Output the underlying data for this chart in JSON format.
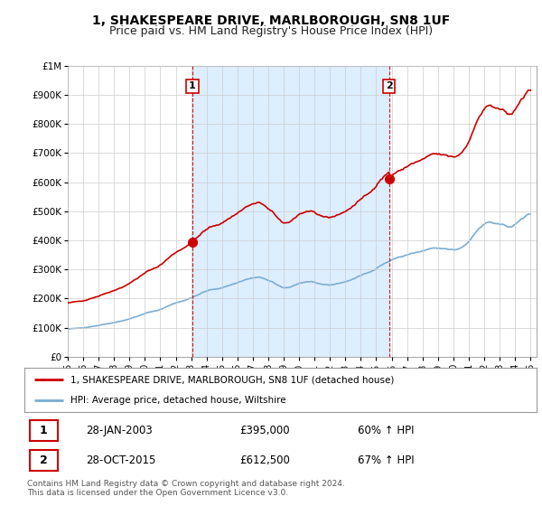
{
  "title": "1, SHAKESPEARE DRIVE, MARLBOROUGH, SN8 1UF",
  "subtitle": "Price paid vs. HM Land Registry's House Price Index (HPI)",
  "ylim": [
    0,
    1000000
  ],
  "yticks": [
    0,
    100000,
    200000,
    300000,
    400000,
    500000,
    600000,
    700000,
    800000,
    900000,
    1000000
  ],
  "ytick_labels": [
    "£0",
    "£100K",
    "£200K",
    "£300K",
    "£400K",
    "£500K",
    "£600K",
    "£700K",
    "£800K",
    "£900K",
    "£1M"
  ],
  "red_line_color": "#cc0000",
  "blue_line_color": "#7aadd4",
  "shade_color": "#ddeeff",
  "sale1_date": 2003.08,
  "sale1_price": 395000,
  "sale1_label": "1",
  "sale2_date": 2015.83,
  "sale2_price": 612500,
  "sale2_label": "2",
  "legend_entry1": "1, SHAKESPEARE DRIVE, MARLBOROUGH, SN8 1UF (detached house)",
  "legend_entry2": "HPI: Average price, detached house, Wiltshire",
  "table_row1": [
    "1",
    "28-JAN-2003",
    "£395,000",
    "60% ↑ HPI"
  ],
  "table_row2": [
    "2",
    "28-OCT-2015",
    "£612,500",
    "67% ↑ HPI"
  ],
  "footnote": "Contains HM Land Registry data © Crown copyright and database right 2024.\nThis data is licensed under the Open Government Licence v3.0.",
  "background_color": "#ffffff",
  "grid_color": "#cccccc",
  "title_fontsize": 10,
  "subtitle_fontsize": 9
}
